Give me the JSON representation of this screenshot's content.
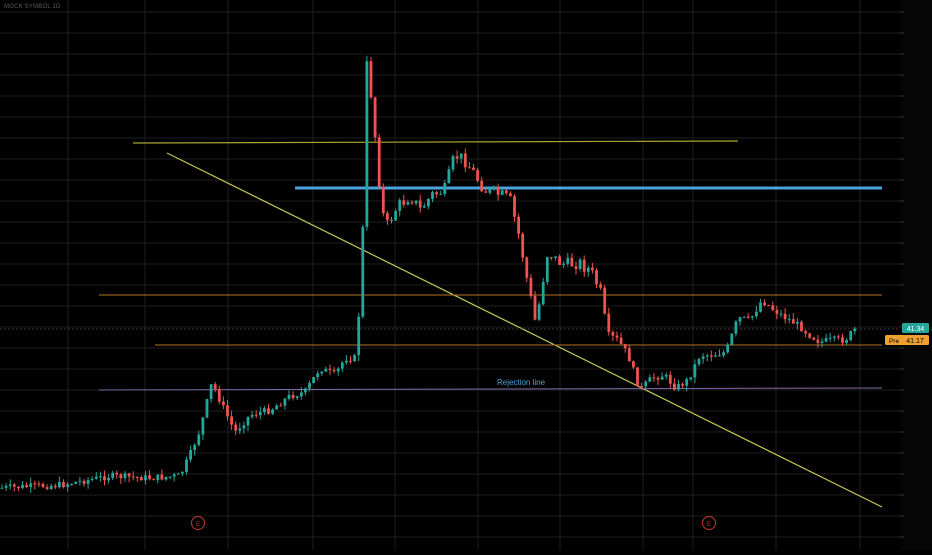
{
  "header": {
    "title": "MOCK SYMBOL 1D"
  },
  "colors": {
    "background": "#000000",
    "grid": "#1e1e1e",
    "up": "#26a69a",
    "down": "#ef5350",
    "trendline": "#c7c552",
    "resistance": "#4aa3df",
    "support_orange": "#b8722a",
    "support_purple": "#7e6ba8",
    "support_yellow": "#a9a533",
    "price_tag": "#26a69a",
    "pre_tag": "#f0a030"
  },
  "price_axis": {
    "current_value": "41.34",
    "pre_label": "Pre",
    "pre_value": "41.17"
  },
  "event_markers": [
    {
      "label": "E"
    },
    {
      "label": "E"
    }
  ],
  "chart_data": {
    "type": "candlestick",
    "title": "",
    "ylim": [
      30,
      50
    ],
    "series": [],
    "annotations": [
      {
        "type": "text",
        "text": "Rejection line"
      }
    ]
  }
}
